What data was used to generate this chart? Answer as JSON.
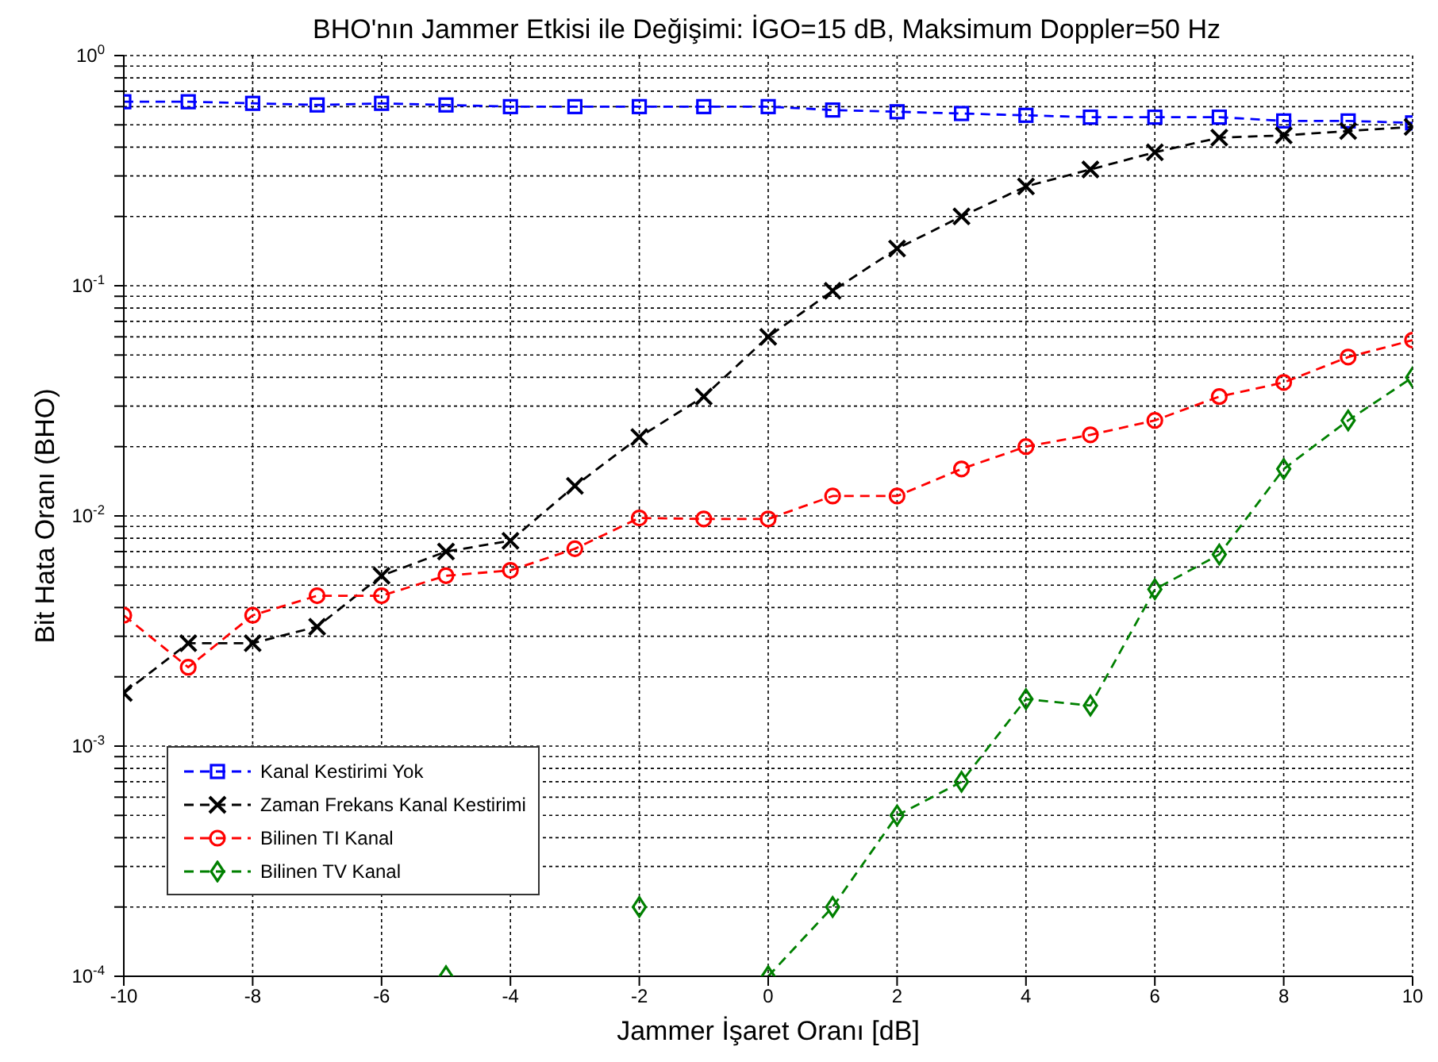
{
  "chart_data": {
    "type": "line",
    "title": "BHO'nın Jammer Etkisi ile Değişimi: İGO=15 dB, Maksimum Doppler=50 Hz",
    "xlabel": "Jammer İşaret Oranı [dB]",
    "ylabel": "Bit Hata Oranı (BHO)",
    "x": [
      -10,
      -9,
      -8,
      -7,
      -6,
      -5,
      -4,
      -3,
      -2,
      -1,
      0,
      1,
      2,
      3,
      4,
      5,
      6,
      7,
      8,
      9,
      10
    ],
    "series": [
      {
        "name": "Kanal Kestirimi Yok",
        "color": "#0000ff",
        "marker": "square",
        "values": [
          0.63,
          0.63,
          0.62,
          0.61,
          0.62,
          0.61,
          0.6,
          0.6,
          0.6,
          0.6,
          0.6,
          0.58,
          0.57,
          0.56,
          0.55,
          0.54,
          0.54,
          0.54,
          0.52,
          0.52,
          0.51
        ]
      },
      {
        "name": "Zaman Frekans Kanal Kestirimi",
        "color": "#000000",
        "marker": "cross",
        "values": [
          0.0017,
          0.0028,
          0.0028,
          0.0033,
          0.0055,
          0.007,
          0.0078,
          0.0135,
          0.022,
          0.033,
          0.06,
          0.095,
          0.145,
          0.2,
          0.27,
          0.32,
          0.38,
          0.44,
          0.45,
          0.47,
          0.49
        ]
      },
      {
        "name": "Bilinen TI Kanal",
        "color": "#ff0000",
        "marker": "circle",
        "values": [
          0.0037,
          0.0022,
          0.0037,
          0.0045,
          0.0045,
          0.0055,
          0.0058,
          0.0072,
          0.0098,
          0.0097,
          0.0097,
          0.0122,
          0.0122,
          0.016,
          0.02,
          0.0225,
          0.026,
          0.033,
          0.038,
          0.049,
          0.058
        ]
      },
      {
        "name": "Bilinen TV Kanal",
        "color": "#008000",
        "marker": "diamond",
        "values": [
          null,
          null,
          null,
          null,
          null,
          0.0001,
          null,
          null,
          0.0002,
          null,
          0.0001,
          0.0002,
          0.0005,
          0.0007,
          0.0016,
          0.0015,
          0.0048,
          0.0068,
          0.016,
          0.026,
          0.04
        ]
      }
    ],
    "xlim": [
      -10,
      10
    ],
    "xticks": [
      -10,
      -8,
      -6,
      -4,
      -2,
      0,
      2,
      4,
      6,
      8,
      10
    ],
    "ylim": [
      0.0001,
      1
    ],
    "log": "y",
    "yticks": [
      {
        "value": 0.0001,
        "label": "10$^{-4}$"
      },
      {
        "value": 0.0002,
        "label": null
      },
      {
        "value": 0.0003,
        "label": null
      },
      {
        "value": 0.0004,
        "label": null
      },
      {
        "value": 0.0005,
        "label": null
      },
      {
        "value": 0.0006,
        "label": null
      },
      {
        "value": 0.0007,
        "label": null
      },
      {
        "value": 0.0008,
        "label": null
      },
      {
        "value": 0.0009,
        "label": null
      },
      {
        "value": 0.001,
        "label": "10$^{-3}$"
      },
      {
        "value": 0.002,
        "label": null
      },
      {
        "value": 0.003,
        "label": null
      },
      {
        "value": 0.004,
        "label": null
      },
      {
        "value": 0.005,
        "label": null
      },
      {
        "value": 0.006,
        "label": null
      },
      {
        "value": 0.007,
        "label": null
      },
      {
        "value": 0.008,
        "label": null
      },
      {
        "value": 0.009,
        "label": null
      },
      {
        "value": 0.01,
        "label": "10$^{-2}$"
      },
      {
        "value": 0.02,
        "label": null
      },
      {
        "value": 0.03,
        "label": null
      },
      {
        "value": 0.04,
        "label": null
      },
      {
        "value": 0.05,
        "label": null
      },
      {
        "value": 0.06,
        "label": null
      },
      {
        "value": 0.07,
        "label": null
      },
      {
        "value": 0.08,
        "label": null
      },
      {
        "value": 0.09,
        "label": null
      },
      {
        "value": 0.1,
        "label": "10$^{-1}$"
      },
      {
        "value": 0.2,
        "label": null
      },
      {
        "value": 0.3,
        "label": null
      },
      {
        "value": 0.4,
        "label": null
      },
      {
        "value": 0.5,
        "label": null
      },
      {
        "value": 0.6,
        "label": null
      },
      {
        "value": 0.7,
        "label": null
      },
      {
        "value": 0.8,
        "label": null
      },
      {
        "value": 0.9,
        "label": null
      },
      {
        "value": 1,
        "label": "10$^{0}$"
      }
    ],
    "grid": true,
    "legend": "bottom left",
    "line_style": "dashed"
  }
}
